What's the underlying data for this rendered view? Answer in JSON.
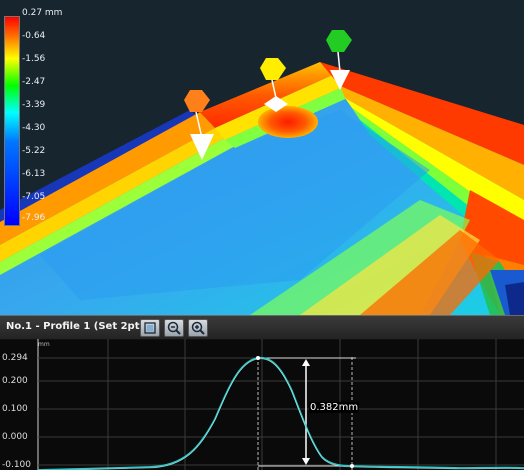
{
  "legend": {
    "labels": [
      "0.27 mm",
      "-0.64",
      "-1.56",
      "-2.47",
      "-3.39",
      "-4.30",
      "-5.22",
      "-6.13",
      "-7.05",
      "-7.96"
    ],
    "colors": [
      "#ff0000",
      "#ffff00",
      "#00ff00",
      "#00ffff",
      "#0000ff"
    ]
  },
  "markers": {
    "colors": [
      "#ff7f1a",
      "#ffee00",
      "#22cc22"
    ]
  },
  "profile": {
    "title": "No.1 - Profile 1 (Set 2pt.)",
    "y_unit": "mm",
    "y_ticks": [
      "0.294",
      "0.200",
      "0.100",
      "0.000",
      "-0.100"
    ],
    "measurement": "0.382mm",
    "curve_color": "#33c8c8",
    "tools": [
      "fit-view-icon",
      "zoom-out-icon",
      "zoom-in-icon"
    ]
  }
}
